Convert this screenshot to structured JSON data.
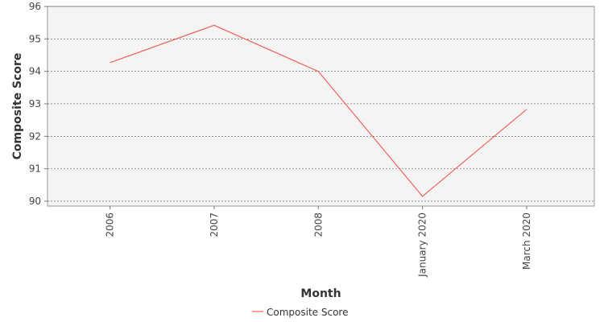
{
  "chart_data": {
    "type": "line",
    "title": "",
    "xlabel": "Month",
    "ylabel": "Composite Score",
    "categories": [
      "2006",
      "2007",
      "2008",
      "January 2020",
      "March 2020"
    ],
    "series": [
      {
        "name": "Composite Score",
        "color": "#f0605a",
        "values": [
          94.27,
          95.42,
          94.0,
          90.15,
          92.83
        ]
      }
    ],
    "ylim": [
      89.85,
      96
    ],
    "yticks": [
      90,
      91,
      92,
      93,
      94,
      95,
      96
    ],
    "grid": true,
    "legend": "bottom-center",
    "plot_background": "#f4f4f4",
    "grid_color": "#555555"
  }
}
